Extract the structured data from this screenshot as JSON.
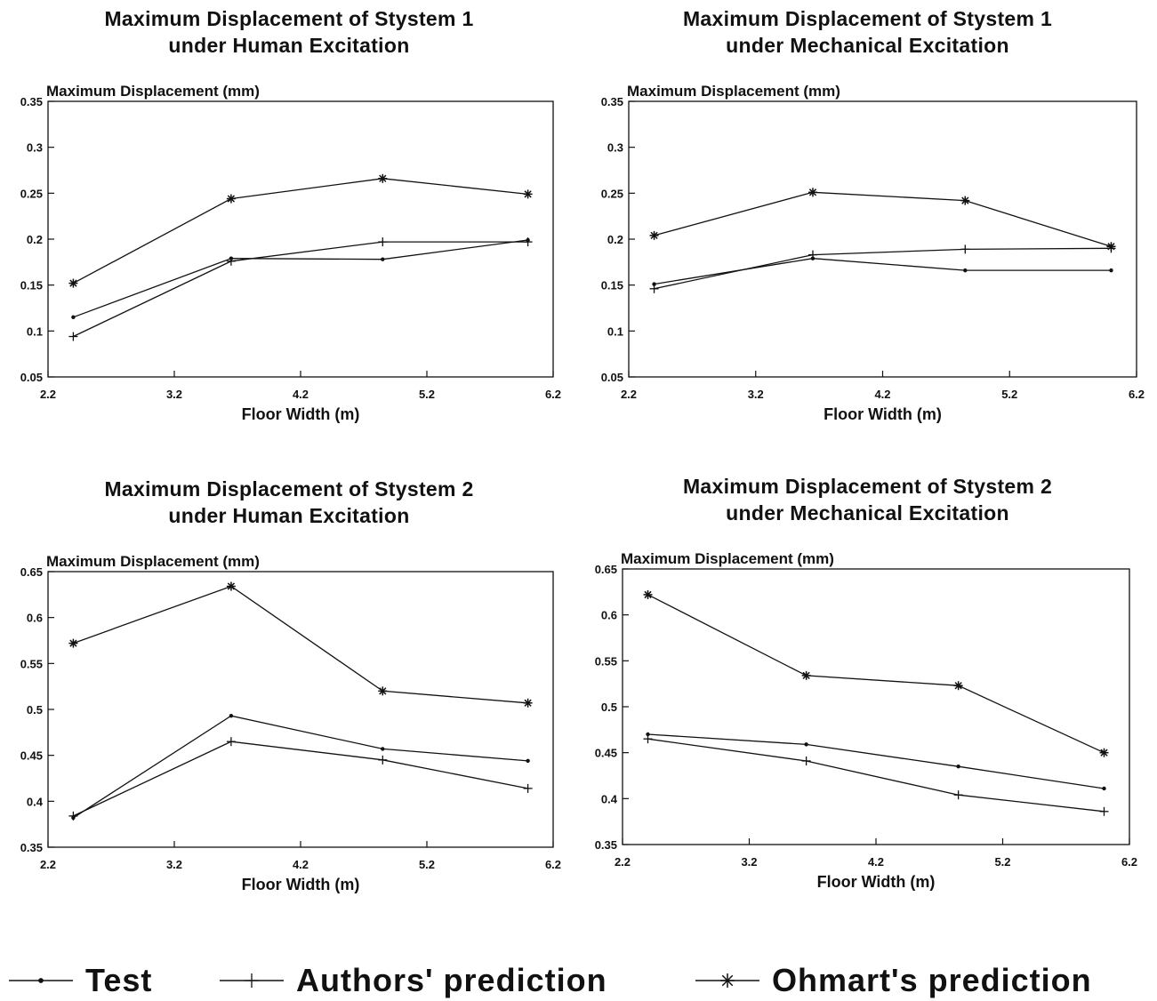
{
  "chart_data": [
    {
      "type": "line",
      "title": "Maximum Displacement of Stystem 1\nunder Human Excitation",
      "ylabel": "Maximum Displacement (mm)",
      "xlabel": "Floor Width (m)",
      "xlim": [
        2.2,
        6.2
      ],
      "ylim": [
        0.05,
        0.35
      ],
      "xticks": [
        "2.2",
        "3.2",
        "4.2",
        "5.2",
        "6.2"
      ],
      "yticks": [
        "0.05",
        "0.1",
        "0.15",
        "0.2",
        "0.25",
        "0.3",
        "0.35"
      ],
      "x": [
        2.4,
        3.65,
        4.85,
        6.0
      ],
      "series": [
        {
          "name": "Test",
          "marker": "dot",
          "values": [
            0.115,
            0.179,
            0.178,
            0.199
          ]
        },
        {
          "name": "Authors' prediction",
          "marker": "plus",
          "values": [
            0.094,
            0.176,
            0.197,
            0.197
          ]
        },
        {
          "name": "Ohmart's prediction",
          "marker": "star",
          "values": [
            0.152,
            0.244,
            0.266,
            0.249
          ]
        }
      ]
    },
    {
      "type": "line",
      "title": "Maximum Displacement of Stystem 1\nunder Mechanical Excitation",
      "ylabel": "Maximum Displacement (mm)",
      "xlabel": "Floor Width (m)",
      "xlim": [
        2.2,
        6.2
      ],
      "ylim": [
        0.05,
        0.35
      ],
      "xticks": [
        "2.2",
        "3.2",
        "4.2",
        "5.2",
        "6.2"
      ],
      "yticks": [
        "0.05",
        "0.1",
        "0.15",
        "0.2",
        "0.25",
        "0.3",
        "0.35"
      ],
      "x": [
        2.4,
        3.65,
        4.85,
        6.0
      ],
      "series": [
        {
          "name": "Test",
          "marker": "dot",
          "values": [
            0.151,
            0.179,
            0.166,
            0.166
          ]
        },
        {
          "name": "Authors' prediction",
          "marker": "plus",
          "values": [
            0.146,
            0.183,
            0.189,
            0.19
          ]
        },
        {
          "name": "Ohmart's prediction",
          "marker": "star",
          "values": [
            0.204,
            0.251,
            0.242,
            0.192
          ]
        }
      ]
    },
    {
      "type": "line",
      "title": "Maximum Displacement of Stystem 2\nunder Human Excitation",
      "ylabel": "Maximum Displacement (mm)",
      "xlabel": "Floor Width (m)",
      "xlim": [
        2.2,
        6.2
      ],
      "ylim": [
        0.35,
        0.65
      ],
      "xticks": [
        "2.2",
        "3.2",
        "4.2",
        "5.2",
        "6.2"
      ],
      "yticks": [
        "0.35",
        "0.4",
        "0.45",
        "0.5",
        "0.55",
        "0.6",
        "0.65"
      ],
      "x": [
        2.4,
        3.65,
        4.85,
        6.0
      ],
      "series": [
        {
          "name": "Test",
          "marker": "dot",
          "values": [
            0.382,
            0.493,
            0.457,
            0.444
          ]
        },
        {
          "name": "Authors' prediction",
          "marker": "plus",
          "values": [
            0.384,
            0.465,
            0.445,
            0.414
          ]
        },
        {
          "name": "Ohmart's prediction",
          "marker": "star",
          "values": [
            0.572,
            0.634,
            0.52,
            0.507
          ]
        }
      ]
    },
    {
      "type": "line",
      "title": "Maximum Displacement of Stystem 2\nunder Mechanical Excitation",
      "ylabel": "Maximum Displacement (mm)",
      "xlabel": "Floor Width (m)",
      "xlim": [
        2.2,
        6.2
      ],
      "ylim": [
        0.35,
        0.65
      ],
      "xticks": [
        "2.2",
        "3.2",
        "4.2",
        "5.2",
        "6.2"
      ],
      "yticks": [
        "0.35",
        "0.4",
        "0.45",
        "0.5",
        "0.55",
        "0.6",
        "0.65"
      ],
      "x": [
        2.4,
        3.65,
        4.85,
        6.0
      ],
      "series": [
        {
          "name": "Test",
          "marker": "dot",
          "values": [
            0.47,
            0.459,
            0.435,
            0.411
          ]
        },
        {
          "name": "Authors' prediction",
          "marker": "plus",
          "values": [
            0.465,
            0.441,
            0.404,
            0.386
          ]
        },
        {
          "name": "Ohmart's prediction",
          "marker": "star",
          "values": [
            0.622,
            0.534,
            0.523,
            0.45
          ]
        }
      ]
    }
  ],
  "legend": {
    "items": [
      {
        "label": "Test",
        "marker": "dot"
      },
      {
        "label": "Authors' prediction",
        "marker": "plus"
      },
      {
        "label": "Ohmart's prediction",
        "marker": "star"
      }
    ]
  }
}
